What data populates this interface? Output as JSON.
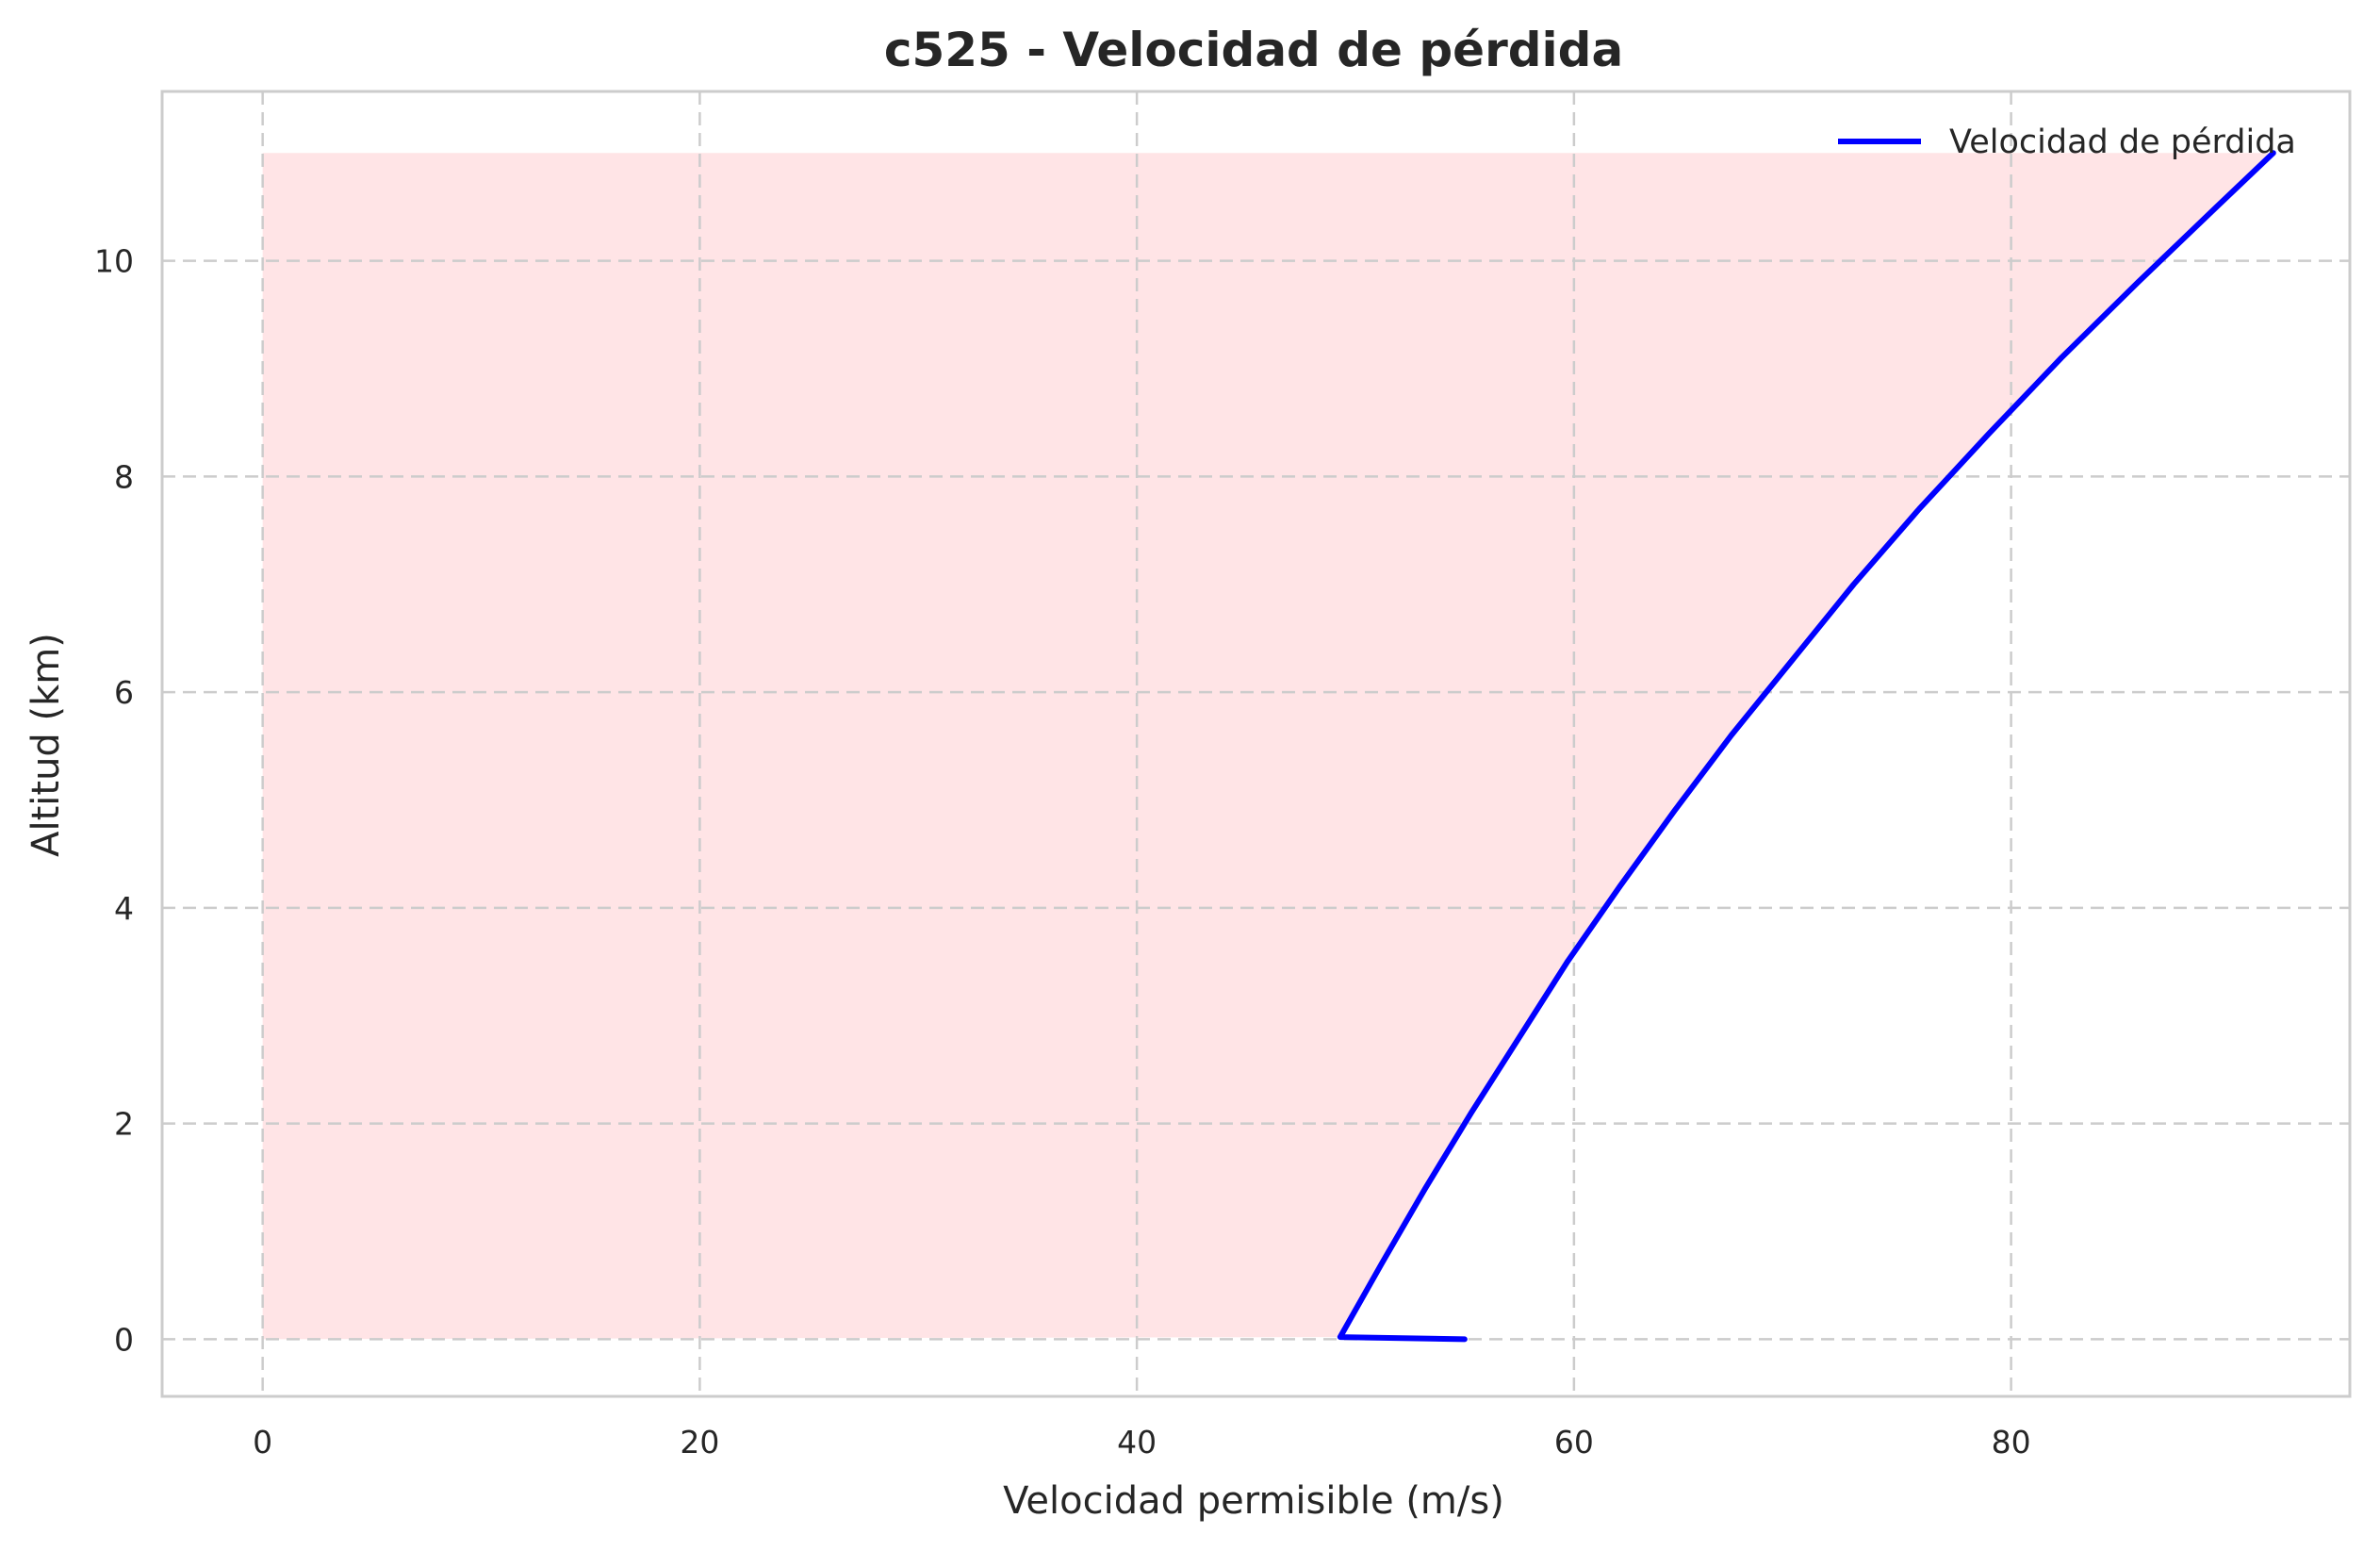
{
  "chart_data": {
    "type": "line",
    "title": "c525 - Velocidad de pérdida",
    "xlabel": "Velocidad permisible (m/s)",
    "ylabel": "Altitud (km)",
    "xlim": [
      -4.6,
      95.5
    ],
    "ylim": [
      -0.53,
      11.57
    ],
    "xticks": [
      0,
      20,
      40,
      60,
      80
    ],
    "yticks": [
      0,
      2,
      4,
      6,
      8,
      10
    ],
    "grid": true,
    "legend_position": "top-right",
    "series": [
      {
        "name": "Velocidad de pérdida",
        "color": "#0000ff",
        "x": [
          55.0,
          49.3,
          51.2,
          53.2,
          55.3,
          57.5,
          59.7,
          62.1,
          64.6,
          67.2,
          70.0,
          72.8,
          75.8,
          79.0,
          82.3,
          85.8,
          89.4,
          92.0
        ],
        "y": [
          0.0,
          0.02,
          0.7,
          1.4,
          2.1,
          2.8,
          3.5,
          4.2,
          4.9,
          5.6,
          6.3,
          7.0,
          7.7,
          8.4,
          9.1,
          9.8,
          10.5,
          11.0
        ]
      }
    ],
    "fill": {
      "color": "#ffb3b8",
      "opacity": 0.35,
      "x_from": 0,
      "x_to_series": 0,
      "y_range": [
        0,
        11
      ]
    }
  }
}
